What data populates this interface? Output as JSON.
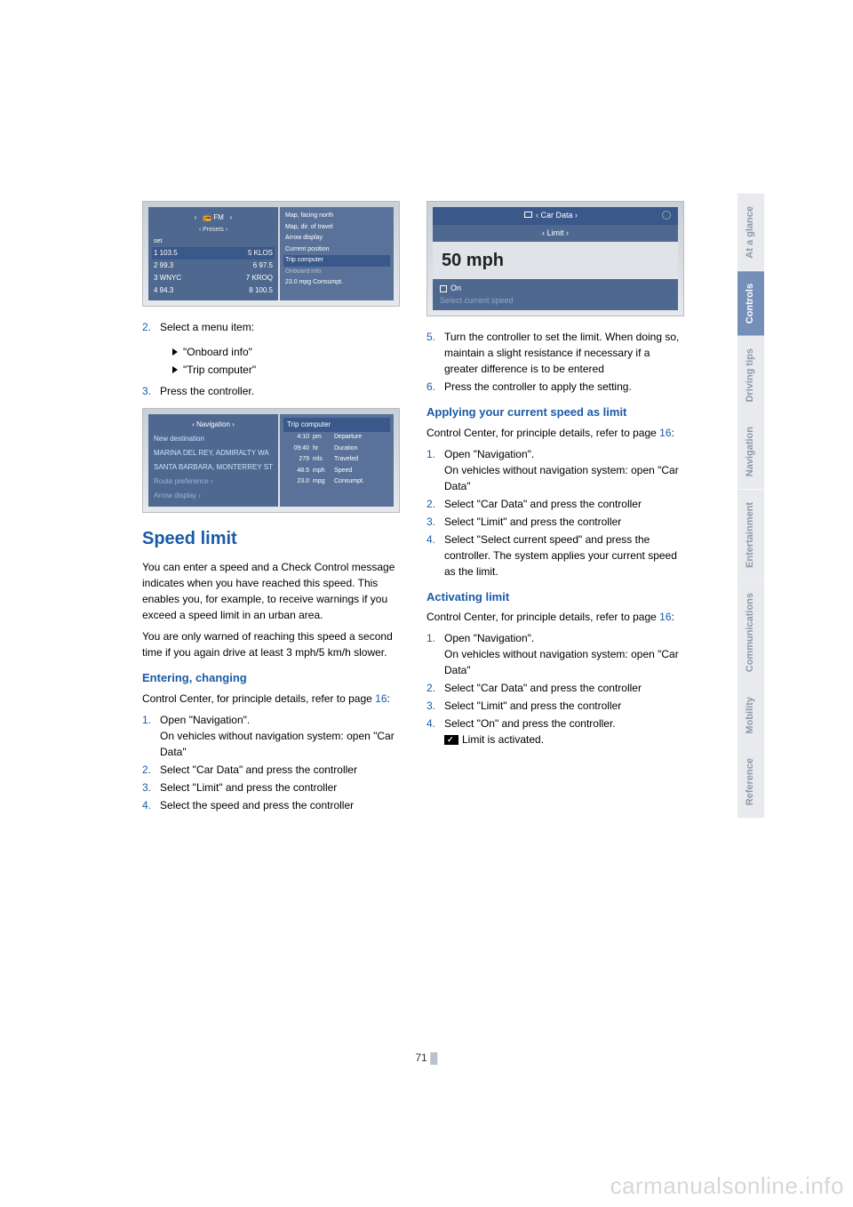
{
  "page_number": "71",
  "footer": "carmanualsonline.info",
  "side_tabs": [
    {
      "label": "At a glance",
      "active": false
    },
    {
      "label": "Controls",
      "active": true
    },
    {
      "label": "Driving tips",
      "active": false
    },
    {
      "label": "Navigation",
      "active": false
    },
    {
      "label": "Entertainment",
      "active": false
    },
    {
      "label": "Communications",
      "active": false
    },
    {
      "label": "Mobility",
      "active": false
    },
    {
      "label": "Reference",
      "active": false
    }
  ],
  "screenshot1": {
    "header": "FM",
    "subheader": "‹ Presets ›",
    "left_label": "set",
    "rows": [
      {
        "l": "1 103.5",
        "r": "5 KLOS"
      },
      {
        "l": "2 99.3",
        "r": "6 97.5"
      },
      {
        "l": "3 WNYC",
        "r": "7 KROQ"
      },
      {
        "l": "4 94.3",
        "r": "8 100.5"
      }
    ],
    "right_items": [
      "Map, facing north",
      "Map, dir. of travel",
      "Arrow display",
      "Current position",
      "Trip computer",
      "Onboard info",
      "23.0  mpg  Consumpt."
    ],
    "right_sel_index": 4
  },
  "left_col": {
    "step2": {
      "num": "2.",
      "text": "Select a menu item:"
    },
    "step2a": "\"Onboard info\"",
    "step2b": "\"Trip computer\"",
    "step3": {
      "num": "3.",
      "text": "Press the controller."
    }
  },
  "screenshot2": {
    "left_header": "‹   Navigation   ›",
    "left_items": [
      {
        "t": "New destination",
        "dim": false
      },
      {
        "t": "MARINA DEL REY, ADMIRALTY WA",
        "dim": false
      },
      {
        "t": "SANTA BARBARA, MONTERREY ST",
        "dim": false
      },
      {
        "t": "Route preference ›",
        "dim": true
      },
      {
        "t": "Arrow display ›",
        "dim": true
      }
    ],
    "right_header": "Trip computer",
    "right_rows": [
      {
        "a": "4:10",
        "b": "pm",
        "c": "Departure"
      },
      {
        "a": "09:40",
        "b": "hr",
        "c": "Duration"
      },
      {
        "a": "279",
        "b": "mls",
        "c": "Traveled"
      },
      {
        "a": "48.5",
        "b": "mph",
        "c": "Speed"
      },
      {
        "a": "23.0",
        "b": "mpg",
        "c": "Consumpt."
      }
    ]
  },
  "speed_limit": {
    "title": "Speed limit",
    "intro1": "You can enter a speed and a Check Control message indicates when you have reached this speed. This enables you, for example, to receive warnings if you exceed a speed limit in an urban area.",
    "intro2": "You are only warned of reaching this speed a second time if you again drive at least 3 mph/5 km/h slower.",
    "entering": {
      "title": "Entering, changing",
      "lead": "Control Center, for principle details, refer to page ",
      "lead_ref": "16",
      "lead_tail": ":",
      "s1": {
        "num": "1.",
        "t1": "Open \"Navigation\".",
        "t2": "On vehicles without navigation system: open \"Car Data\""
      },
      "s2": {
        "num": "2.",
        "t": "Select \"Car Data\" and press the controller"
      },
      "s3": {
        "num": "3.",
        "t": "Select \"Limit\" and press the controller"
      },
      "s4": {
        "num": "4.",
        "t": "Select the speed and press the controller"
      }
    }
  },
  "screenshot3": {
    "top": "‹   Car Data   ›",
    "sub": "‹ Limit ›",
    "speed": "50 mph",
    "on": "On",
    "select": "Select current speed"
  },
  "right_col": {
    "s5": {
      "num": "5.",
      "t": "Turn the controller to set the limit. When doing so, maintain a slight resistance if necessary if a greater difference is to be entered"
    },
    "s6": {
      "num": "6.",
      "t": "Press the controller to apply the setting."
    },
    "applying": {
      "title": "Applying your current speed as limit",
      "lead": "Control Center, for principle details, refer to page ",
      "lead_ref": "16",
      "lead_tail": ":",
      "s1": {
        "num": "1.",
        "t1": "Open \"Navigation\".",
        "t2": "On vehicles without navigation system: open \"Car Data\""
      },
      "s2": {
        "num": "2.",
        "t": "Select \"Car Data\" and press the controller"
      },
      "s3": {
        "num": "3.",
        "t": "Select \"Limit\" and press the controller"
      },
      "s4": {
        "num": "4.",
        "t": "Select \"Select current speed\" and press the controller. The system applies your current speed as the limit."
      }
    },
    "activating": {
      "title": "Activating limit",
      "lead": "Control Center, for principle details, refer to page ",
      "lead_ref": "16",
      "lead_tail": ":",
      "s1": {
        "num": "1.",
        "t1": "Open \"Navigation\".",
        "t2": "On vehicles without navigation system: open \"Car Data\""
      },
      "s2": {
        "num": "2.",
        "t": "Select \"Car Data\" and press the controller"
      },
      "s3": {
        "num": "3.",
        "t": "Select \"Limit\" and press the controller"
      },
      "s4": {
        "num": "4.",
        "t": "Select \"On\" and press the controller."
      },
      "s4b": "Limit is activated."
    }
  }
}
